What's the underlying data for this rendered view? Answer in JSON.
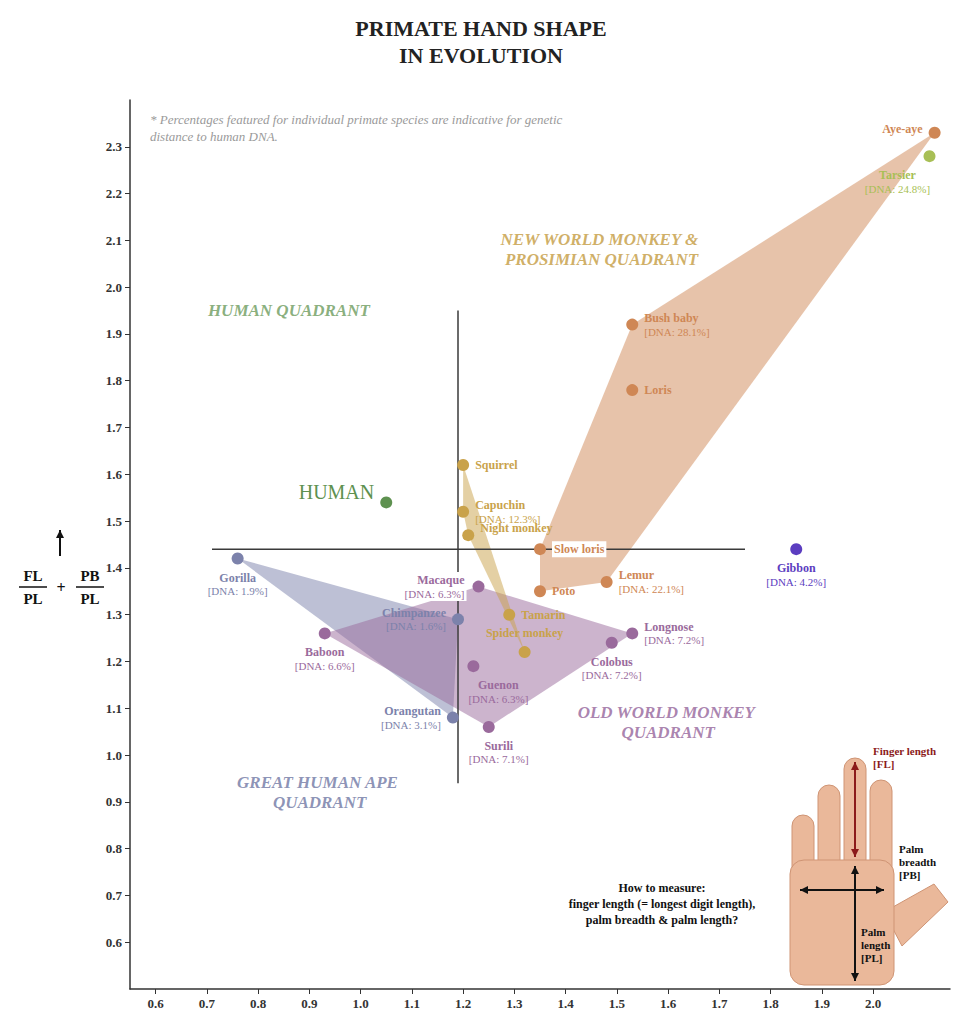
{
  "chart_data": {
    "type": "scatter",
    "title": "PRIMATE HAND SHAPE\nIN EVOLUTION",
    "note": "* Percentages featured for individual primate species are indicative for genetic distance to human DNA.",
    "ylabel": {
      "fractions": [
        {
          "numerator": "FL",
          "denominator": "PL"
        },
        {
          "numerator": "PB",
          "denominator": "PL"
        }
      ],
      "operator": "+"
    },
    "xlim": [
      0.55,
      2.15
    ],
    "xticks": [
      0.6,
      0.7,
      0.8,
      0.9,
      {
        "value": 1,
        "label": "1.0"
      },
      1.1,
      1.2,
      1.3,
      1.4,
      1.5,
      1.6,
      1.7,
      1.8,
      1.9,
      {
        "value": 2,
        "label": "2.0"
      }
    ],
    "ylim": [
      0.5,
      2.4
    ],
    "yticks": [
      0.6,
      0.7,
      0.8,
      0.9,
      {
        "value": 1,
        "label": "1.0"
      },
      1.1,
      1.2,
      1.3,
      1.4,
      1.5,
      1.6,
      1.7,
      1.8,
      1.9,
      {
        "value": 2,
        "label": "2.0"
      },
      2.1,
      2.2,
      2.3
    ],
    "grid": false,
    "series": [
      {
        "type": "scatter",
        "color": "#5e9150",
        "labels": [
          "HUMAN"
        ],
        "x": [
          1.05
        ],
        "y": [
          1.54
        ],
        "dna_labels": [
          null
        ]
      },
      {
        "type": "area",
        "color": "#7c82ab",
        "labels": [
          "Gorilla",
          "Chimpanzee",
          "Orangutan"
        ],
        "x": [
          0.76,
          1.19,
          1.18
        ],
        "y": [
          1.42,
          1.29,
          1.08
        ],
        "dna_labels": [
          "[DNA: 1.9%]",
          "[DNA: 1.6%]",
          "[DNA: 3.1%]"
        ]
      },
      {
        "type": "area",
        "color": "#9a6a9c",
        "labels": [
          "Baboon",
          "Macaque",
          "Guenon",
          "Surili",
          "Colobus",
          "Longnose"
        ],
        "x": [
          0.93,
          1.23,
          1.22,
          1.25,
          1.49,
          1.53
        ],
        "y": [
          1.26,
          1.36,
          1.19,
          1.06,
          1.24,
          1.26
        ],
        "dna_labels": [
          "[DNA: 6.6%]",
          "[DNA: 6.3%]",
          "[DNA: 6.3%]",
          "[DNA: 7.1%]",
          "[DNA: 7.2%]",
          "[DNA: 7.2%]"
        ]
      },
      {
        "type": "area",
        "color": "#c9a24a",
        "labels": [
          "Squirrel",
          "Capuchin",
          "Night monkey",
          "Tamarin",
          "Spider monkey"
        ],
        "x": [
          1.2,
          1.2,
          1.21,
          1.29,
          1.32
        ],
        "y": [
          1.62,
          1.52,
          1.47,
          1.3,
          1.22
        ],
        "dna_labels": [
          null,
          "[DNA: 12.3%]",
          null,
          null,
          null
        ]
      },
      {
        "type": "area",
        "color": "#cf8755",
        "labels": [
          "Aye-aye",
          "Bush baby",
          "Loris",
          "Slow loris",
          "Poto",
          "Lemur"
        ],
        "x": [
          2.12,
          1.53,
          1.53,
          1.35,
          1.35,
          1.48
        ],
        "y": [
          2.33,
          1.92,
          1.78,
          1.44,
          1.35,
          1.37
        ],
        "dna_labels": [
          null,
          "[DNA: 28.1%]",
          null,
          null,
          null,
          "[DNA: 22.1%]"
        ]
      },
      {
        "type": "scatter",
        "color": "#a8bf55",
        "labels": [
          "Tarsier"
        ],
        "x": [
          2.11
        ],
        "y": [
          2.28
        ],
        "dna_labels": [
          "[DNA: 24.8%]"
        ]
      },
      {
        "type": "scatter",
        "color": "#5b3dc0",
        "labels": [
          "Gibbon"
        ],
        "x": [
          1.85
        ],
        "y": [
          1.44
        ],
        "dna_labels": [
          "[DNA: 4.2%]"
        ]
      }
    ],
    "quadrant_lines": [
      {
        "x": [
          0.71,
          1.75
        ],
        "y": [
          1.44,
          1.44
        ]
      },
      {
        "x": [
          1.19,
          1.19
        ],
        "y": [
          0.94,
          1.95
        ]
      }
    ],
    "annotations": [
      {
        "text": "HUMAN QUADRANT",
        "x": 0.86,
        "y": 1.95,
        "color": "#6b9a5c"
      },
      {
        "text": "NEW WORLD MONKEY & PROSIMIAN QUADRANT",
        "x": 1.47,
        "y": 2.08,
        "color": "#c49a3e"
      },
      {
        "text": "OLD WORLD MONKEY QUADRANT",
        "x": 1.6,
        "y": 1.07,
        "color": "#94649a"
      },
      {
        "text": "GREAT HUMAN APE QUADRANT",
        "x": 0.92,
        "y": 0.92,
        "color": "#6f77a3"
      }
    ],
    "inset": {
      "finger_length": "Finger length [FL]",
      "palm_breadth": "Palm breadth [PB]",
      "palm_length": "Palm length [PL]",
      "how_to_measure": [
        "How to measure:",
        "finger length (= longest digit length),",
        "palm breadth & palm length?"
      ]
    }
  }
}
